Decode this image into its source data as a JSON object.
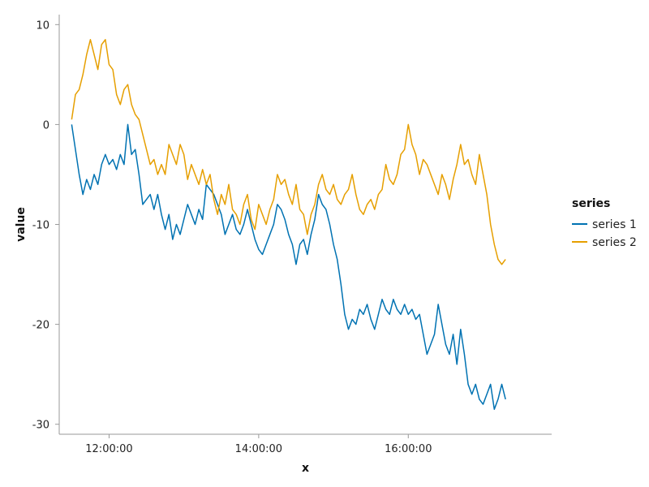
{
  "chart_data": {
    "type": "line",
    "xlabel": "x",
    "ylabel": "value",
    "x_tick_labels": [
      "12:00:00",
      "14:00:00",
      "16:00:00"
    ],
    "y_tick_labels": [
      "10",
      "0",
      "-10",
      "-20",
      "-30"
    ],
    "xlim": [
      "11:20:00",
      "17:55:00"
    ],
    "ylim": [
      -31,
      11
    ],
    "grid": false,
    "legend": {
      "title": "series",
      "position": "right"
    },
    "series": [
      {
        "name": "series 1",
        "color": "#0072b2",
        "points": [
          [
            "11:30:00",
            0
          ],
          [
            "11:33:00",
            -2.5
          ],
          [
            "11:36:00",
            -5
          ],
          [
            "11:39:00",
            -7
          ],
          [
            "11:42:00",
            -5.5
          ],
          [
            "11:45:00",
            -6.5
          ],
          [
            "11:48:00",
            -5
          ],
          [
            "11:51:00",
            -6
          ],
          [
            "11:54:00",
            -4
          ],
          [
            "11:57:00",
            -3
          ],
          [
            "12:00:00",
            -4
          ],
          [
            "12:03:00",
            -3.5
          ],
          [
            "12:06:00",
            -4.5
          ],
          [
            "12:09:00",
            -3
          ],
          [
            "12:12:00",
            -4
          ],
          [
            "12:15:00",
            0
          ],
          [
            "12:18:00",
            -3
          ],
          [
            "12:21:00",
            -2.5
          ],
          [
            "12:24:00",
            -5
          ],
          [
            "12:27:00",
            -8
          ],
          [
            "12:30:00",
            -7.5
          ],
          [
            "12:33:00",
            -7
          ],
          [
            "12:36:00",
            -8.5
          ],
          [
            "12:39:00",
            -7
          ],
          [
            "12:42:00",
            -9
          ],
          [
            "12:45:00",
            -10.5
          ],
          [
            "12:48:00",
            -9
          ],
          [
            "12:51:00",
            -11.5
          ],
          [
            "12:54:00",
            -10
          ],
          [
            "12:57:00",
            -11
          ],
          [
            "13:00:00",
            -9.5
          ],
          [
            "13:03:00",
            -8
          ],
          [
            "13:06:00",
            -9
          ],
          [
            "13:09:00",
            -10
          ],
          [
            "13:12:00",
            -8.5
          ],
          [
            "13:15:00",
            -9.5
          ],
          [
            "13:18:00",
            -6
          ],
          [
            "13:21:00",
            -6.5
          ],
          [
            "13:24:00",
            -7
          ],
          [
            "13:27:00",
            -8
          ],
          [
            "13:30:00",
            -9
          ],
          [
            "13:33:00",
            -11
          ],
          [
            "13:36:00",
            -10
          ],
          [
            "13:39:00",
            -9
          ],
          [
            "13:42:00",
            -10.5
          ],
          [
            "13:45:00",
            -11
          ],
          [
            "13:48:00",
            -10
          ],
          [
            "13:51:00",
            -8.5
          ],
          [
            "13:54:00",
            -10
          ],
          [
            "13:57:00",
            -11.5
          ],
          [
            "14:00:00",
            -12.5
          ],
          [
            "14:03:00",
            -13
          ],
          [
            "14:06:00",
            -12
          ],
          [
            "14:09:00",
            -11
          ],
          [
            "14:12:00",
            -10
          ],
          [
            "14:15:00",
            -8
          ],
          [
            "14:18:00",
            -8.5
          ],
          [
            "14:21:00",
            -9.5
          ],
          [
            "14:24:00",
            -11
          ],
          [
            "14:27:00",
            -12
          ],
          [
            "14:30:00",
            -14
          ],
          [
            "14:33:00",
            -12
          ],
          [
            "14:36:00",
            -11.5
          ],
          [
            "14:39:00",
            -13
          ],
          [
            "14:42:00",
            -11
          ],
          [
            "14:45:00",
            -9.5
          ],
          [
            "14:48:00",
            -7
          ],
          [
            "14:51:00",
            -8
          ],
          [
            "14:54:00",
            -8.5
          ],
          [
            "14:57:00",
            -10
          ],
          [
            "15:00:00",
            -12
          ],
          [
            "15:03:00",
            -13.5
          ],
          [
            "15:06:00",
            -16
          ],
          [
            "15:09:00",
            -19
          ],
          [
            "15:12:00",
            -20.5
          ],
          [
            "15:15:00",
            -19.5
          ],
          [
            "15:18:00",
            -20
          ],
          [
            "15:21:00",
            -18.5
          ],
          [
            "15:24:00",
            -19
          ],
          [
            "15:27:00",
            -18
          ],
          [
            "15:30:00",
            -19.5
          ],
          [
            "15:33:00",
            -20.5
          ],
          [
            "15:36:00",
            -19
          ],
          [
            "15:39:00",
            -17.5
          ],
          [
            "15:42:00",
            -18.5
          ],
          [
            "15:45:00",
            -19
          ],
          [
            "15:48:00",
            -17.5
          ],
          [
            "15:51:00",
            -18.5
          ],
          [
            "15:54:00",
            -19
          ],
          [
            "15:57:00",
            -18
          ],
          [
            "16:00:00",
            -19
          ],
          [
            "16:03:00",
            -18.5
          ],
          [
            "16:06:00",
            -19.5
          ],
          [
            "16:09:00",
            -19
          ],
          [
            "16:12:00",
            -21
          ],
          [
            "16:15:00",
            -23
          ],
          [
            "16:18:00",
            -22
          ],
          [
            "16:21:00",
            -21
          ],
          [
            "16:24:00",
            -18
          ],
          [
            "16:27:00",
            -20
          ],
          [
            "16:30:00",
            -22
          ],
          [
            "16:33:00",
            -23
          ],
          [
            "16:36:00",
            -21
          ],
          [
            "16:39:00",
            -24
          ],
          [
            "16:42:00",
            -20.5
          ],
          [
            "16:45:00",
            -23
          ],
          [
            "16:48:00",
            -26
          ],
          [
            "16:51:00",
            -27
          ],
          [
            "16:54:00",
            -26
          ],
          [
            "16:57:00",
            -27.5
          ],
          [
            "17:00:00",
            -28
          ],
          [
            "17:03:00",
            -27
          ],
          [
            "17:06:00",
            -26
          ],
          [
            "17:09:00",
            -28.5
          ],
          [
            "17:12:00",
            -27.5
          ],
          [
            "17:15:00",
            -26
          ],
          [
            "17:18:00",
            -27.5
          ]
        ]
      },
      {
        "name": "series 2",
        "color": "#e69f00",
        "points": [
          [
            "11:30:00",
            0.5
          ],
          [
            "11:33:00",
            3
          ],
          [
            "11:36:00",
            3.5
          ],
          [
            "11:39:00",
            5
          ],
          [
            "11:42:00",
            7
          ],
          [
            "11:45:00",
            8.5
          ],
          [
            "11:48:00",
            7
          ],
          [
            "11:51:00",
            5.5
          ],
          [
            "11:54:00",
            8
          ],
          [
            "11:57:00",
            8.5
          ],
          [
            "12:00:00",
            6
          ],
          [
            "12:03:00",
            5.5
          ],
          [
            "12:06:00",
            3
          ],
          [
            "12:09:00",
            2
          ],
          [
            "12:12:00",
            3.5
          ],
          [
            "12:15:00",
            4
          ],
          [
            "12:18:00",
            2
          ],
          [
            "12:21:00",
            1
          ],
          [
            "12:24:00",
            0.5
          ],
          [
            "12:27:00",
            -1
          ],
          [
            "12:30:00",
            -2.5
          ],
          [
            "12:33:00",
            -4
          ],
          [
            "12:36:00",
            -3.5
          ],
          [
            "12:39:00",
            -5
          ],
          [
            "12:42:00",
            -4
          ],
          [
            "12:45:00",
            -5
          ],
          [
            "12:48:00",
            -2
          ],
          [
            "12:51:00",
            -3
          ],
          [
            "12:54:00",
            -4
          ],
          [
            "12:57:00",
            -2
          ],
          [
            "13:00:00",
            -3
          ],
          [
            "13:03:00",
            -5.5
          ],
          [
            "13:06:00",
            -4
          ],
          [
            "13:09:00",
            -5
          ],
          [
            "13:12:00",
            -6
          ],
          [
            "13:15:00",
            -4.5
          ],
          [
            "13:18:00",
            -6
          ],
          [
            "13:21:00",
            -5
          ],
          [
            "13:24:00",
            -7.5
          ],
          [
            "13:27:00",
            -9
          ],
          [
            "13:30:00",
            -7
          ],
          [
            "13:33:00",
            -8
          ],
          [
            "13:36:00",
            -6
          ],
          [
            "13:39:00",
            -8.5
          ],
          [
            "13:42:00",
            -9
          ],
          [
            "13:45:00",
            -10
          ],
          [
            "13:48:00",
            -8
          ],
          [
            "13:51:00",
            -7
          ],
          [
            "13:54:00",
            -9.5
          ],
          [
            "13:57:00",
            -10.5
          ],
          [
            "14:00:00",
            -8
          ],
          [
            "14:03:00",
            -9
          ],
          [
            "14:06:00",
            -10
          ],
          [
            "14:09:00",
            -8.5
          ],
          [
            "14:12:00",
            -7.5
          ],
          [
            "14:15:00",
            -5
          ],
          [
            "14:18:00",
            -6
          ],
          [
            "14:21:00",
            -5.5
          ],
          [
            "14:24:00",
            -7
          ],
          [
            "14:27:00",
            -8
          ],
          [
            "14:30:00",
            -6
          ],
          [
            "14:33:00",
            -8.5
          ],
          [
            "14:36:00",
            -9
          ],
          [
            "14:39:00",
            -11
          ],
          [
            "14:42:00",
            -9
          ],
          [
            "14:45:00",
            -8
          ],
          [
            "14:48:00",
            -6
          ],
          [
            "14:51:00",
            -5
          ],
          [
            "14:54:00",
            -6.5
          ],
          [
            "14:57:00",
            -7
          ],
          [
            "15:00:00",
            -6
          ],
          [
            "15:03:00",
            -7.5
          ],
          [
            "15:06:00",
            -8
          ],
          [
            "15:09:00",
            -7
          ],
          [
            "15:12:00",
            -6.5
          ],
          [
            "15:15:00",
            -5
          ],
          [
            "15:18:00",
            -7
          ],
          [
            "15:21:00",
            -8.5
          ],
          [
            "15:24:00",
            -9
          ],
          [
            "15:27:00",
            -8
          ],
          [
            "15:30:00",
            -7.5
          ],
          [
            "15:33:00",
            -8.5
          ],
          [
            "15:36:00",
            -7
          ],
          [
            "15:39:00",
            -6.5
          ],
          [
            "15:42:00",
            -4
          ],
          [
            "15:45:00",
            -5.5
          ],
          [
            "15:48:00",
            -6
          ],
          [
            "15:51:00",
            -5
          ],
          [
            "15:54:00",
            -3
          ],
          [
            "15:57:00",
            -2.5
          ],
          [
            "16:00:00",
            0
          ],
          [
            "16:03:00",
            -2
          ],
          [
            "16:06:00",
            -3
          ],
          [
            "16:09:00",
            -5
          ],
          [
            "16:12:00",
            -3.5
          ],
          [
            "16:15:00",
            -4
          ],
          [
            "16:18:00",
            -5
          ],
          [
            "16:21:00",
            -6
          ],
          [
            "16:24:00",
            -7
          ],
          [
            "16:27:00",
            -5
          ],
          [
            "16:30:00",
            -6
          ],
          [
            "16:33:00",
            -7.5
          ],
          [
            "16:36:00",
            -5.5
          ],
          [
            "16:39:00",
            -4
          ],
          [
            "16:42:00",
            -2
          ],
          [
            "16:45:00",
            -4
          ],
          [
            "16:48:00",
            -3.5
          ],
          [
            "16:51:00",
            -5
          ],
          [
            "16:54:00",
            -6
          ],
          [
            "16:57:00",
            -3
          ],
          [
            "17:00:00",
            -5
          ],
          [
            "17:03:00",
            -7
          ],
          [
            "17:06:00",
            -10
          ],
          [
            "17:09:00",
            -12
          ],
          [
            "17:12:00",
            -13.5
          ],
          [
            "17:15:00",
            -14
          ],
          [
            "17:18:00",
            -13.5
          ]
        ]
      }
    ]
  }
}
